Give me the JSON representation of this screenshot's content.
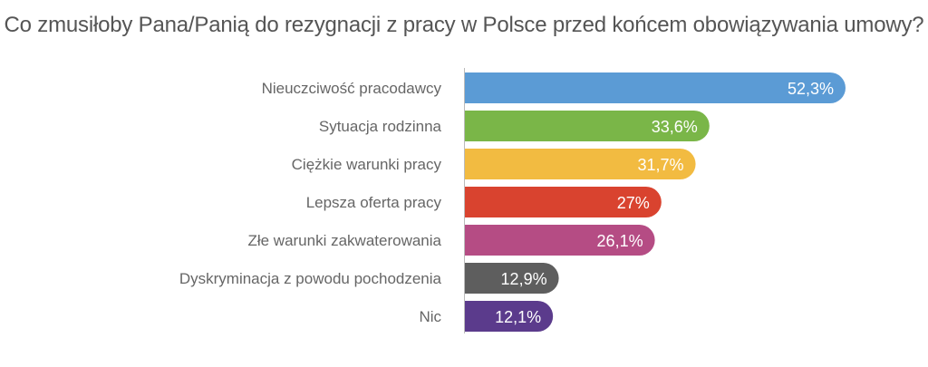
{
  "chart_data": {
    "type": "bar",
    "orientation": "horizontal",
    "title": "Co zmusiłoby Pana/Panią do rezygnacji z pracy w Polsce przed końcem obowiązywania umowy?",
    "categories": [
      "Nieuczciwość pracodawcy",
      "Sytuacja rodzinna",
      "Ciężkie warunki pracy",
      "Lepsza oferta pracy",
      "Złe warunki zakwaterowania",
      "Dyskryminacja z powodu pochodzenia",
      "Nic"
    ],
    "values": [
      52.3,
      33.6,
      31.7,
      27,
      26.1,
      12.9,
      12.1
    ],
    "value_labels": [
      "52,3%",
      "33,6%",
      "31,7%",
      "27%",
      "26,1%",
      "12,9%",
      "12,1%"
    ],
    "colors": [
      "#5b9bd5",
      "#7ab648",
      "#f2bb41",
      "#d9432f",
      "#b54c84",
      "#5e5e5e",
      "#5b3b8c"
    ],
    "xlim": [
      0,
      52.3
    ],
    "grid": false,
    "legend": "none"
  }
}
